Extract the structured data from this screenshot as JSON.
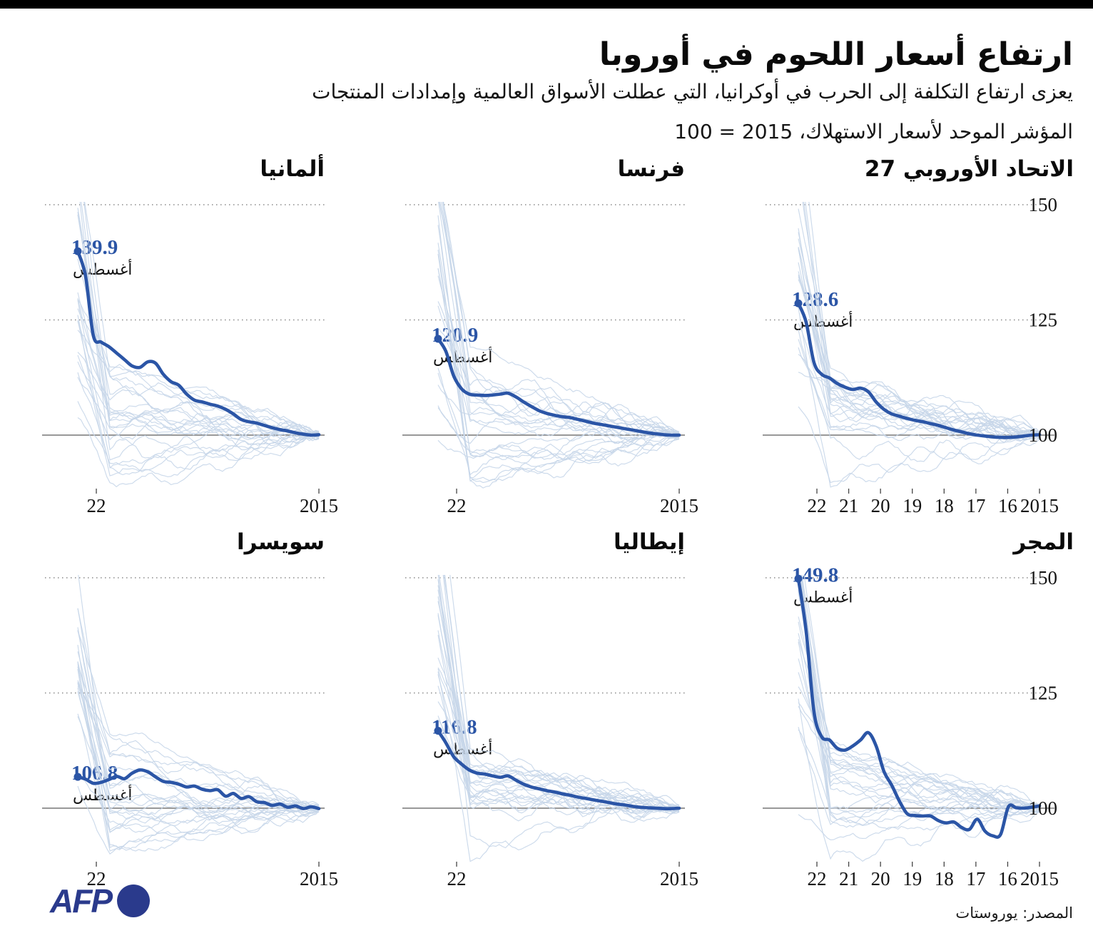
{
  "header": {
    "title": "ارتفاع أسعار اللحوم في أوروبا",
    "subtitle": "يعزى ارتفاع التكلفة إلى الحرب في أوكرانيا، التي عطلت الأسواق العالمية وإمدادات المنتجات",
    "index_note": "المؤشر الموحد لأسعار الاستهلاك، 2015 = 100"
  },
  "footer": {
    "logo_text": "AFP",
    "source": "المصدر: يوروستات"
  },
  "colors": {
    "accent_blue": "#2b55a6",
    "strand_blue": "#c6d6e9",
    "grid_gray": "#8a8a8a",
    "axis_gray": "#777777",
    "logo_blue": "#2a3a8c",
    "text_black": "#141414",
    "topbar_black": "#000000"
  },
  "axis": {
    "y_ticks": [
      "150",
      "125",
      "100"
    ],
    "y_values": [
      150,
      125,
      100
    ],
    "x_ticks_full": [
      "22",
      "21",
      "20",
      "19",
      "18",
      "17",
      "16",
      "2015"
    ],
    "x_ticks_simple": [
      "22",
      "2015"
    ],
    "x_direction": "reversed (2022 on the left, 2015 on the right)"
  },
  "chart_data": [
    {
      "id": "eu27",
      "type": "line",
      "title": "الاتحاد الأوروبي 27",
      "peak_label": "128.6",
      "peak_value": 128.6,
      "month_label": "أغسطس",
      "axis": "full",
      "y_axis_labels": true,
      "x_start": 2022.583,
      "x_end": 2015,
      "ylim": [
        89,
        152
      ],
      "values": [
        128.6,
        124.5,
        115.8,
        113.2,
        112.4,
        111.2,
        110.4,
        109.9,
        110.2,
        109.4,
        107.2,
        105.6,
        104.6,
        104.1,
        103.6,
        103.2,
        102.9,
        102.5,
        102.1,
        101.6,
        101.1,
        100.7,
        100.3,
        100.0,
        99.8,
        99.6,
        99.5,
        99.5,
        99.6,
        99.8,
        100.0,
        100.1
      ],
      "background_series": "unlabeled light-blue traces of other consumer-price categories (decorative bundle converging to 100 in 2015)"
    },
    {
      "id": "france",
      "type": "line",
      "title": "فرنسا",
      "peak_label": "120.9",
      "peak_value": 120.9,
      "month_label": "أغسطس",
      "axis": "simple",
      "y_axis_labels": false,
      "x_start": 2022.583,
      "x_end": 2015,
      "ylim": [
        89,
        152
      ],
      "values": [
        120.9,
        118.2,
        112.9,
        110.1,
        108.9,
        108.7,
        108.6,
        108.7,
        108.9,
        109.1,
        108.3,
        107.2,
        106.2,
        105.3,
        104.7,
        104.3,
        104.0,
        103.8,
        103.4,
        103.0,
        102.6,
        102.3,
        102.0,
        101.7,
        101.4,
        101.1,
        100.8,
        100.5,
        100.3,
        100.1,
        100.0,
        100.0
      ],
      "background_series": "unlabeled light-blue traces of other consumer-price categories"
    },
    {
      "id": "germany",
      "type": "line",
      "title": "ألمانيا",
      "peak_label": "139.9",
      "peak_value": 139.9,
      "month_label": "أغسطس",
      "axis": "simple",
      "y_axis_labels": false,
      "x_start": 2022.583,
      "x_end": 2015,
      "ylim": [
        89,
        152
      ],
      "values": [
        139.9,
        134.5,
        121.6,
        120.2,
        119.2,
        117.8,
        116.4,
        115.0,
        114.7,
        115.9,
        115.6,
        113.2,
        111.6,
        110.8,
        108.9,
        107.6,
        107.2,
        106.7,
        106.3,
        105.6,
        104.6,
        103.4,
        102.9,
        102.6,
        102.1,
        101.6,
        101.2,
        100.9,
        100.5,
        100.2,
        100.0,
        100.1
      ],
      "background_series": "unlabeled light-blue traces of other consumer-price categories"
    },
    {
      "id": "hungary",
      "type": "line",
      "title": "المجر",
      "peak_label": "149.8",
      "peak_value": 149.8,
      "month_label": "أغسطس",
      "axis": "full",
      "y_axis_labels": true,
      "x_start": 2022.583,
      "x_end": 2015,
      "ylim": [
        89,
        152
      ],
      "values": [
        149.8,
        138.5,
        121.0,
        115.5,
        114.8,
        113.0,
        112.6,
        113.5,
        114.8,
        116.4,
        113.5,
        108.0,
        105.0,
        101.5,
        98.8,
        98.4,
        98.3,
        98.3,
        97.3,
        96.8,
        97.0,
        95.8,
        95.4,
        97.6,
        95.0,
        94.0,
        94.3,
        100.3,
        100.1,
        100.0,
        100.2,
        100.5
      ],
      "background_series": "unlabeled light-blue traces of other consumer-price categories"
    },
    {
      "id": "italy",
      "type": "line",
      "title": "إيطاليا",
      "peak_label": "116.8",
      "peak_value": 116.8,
      "month_label": "أغسطس",
      "axis": "simple",
      "y_axis_labels": false,
      "x_start": 2022.583,
      "x_end": 2015,
      "ylim": [
        89,
        152
      ],
      "values": [
        116.8,
        114.2,
        111.2,
        109.6,
        108.3,
        107.6,
        107.4,
        107.0,
        106.7,
        107.0,
        106.1,
        105.2,
        104.6,
        104.2,
        103.8,
        103.5,
        103.1,
        102.8,
        102.4,
        102.1,
        101.8,
        101.5,
        101.2,
        100.9,
        100.7,
        100.4,
        100.2,
        100.1,
        100.0,
        99.9,
        99.9,
        100.0
      ],
      "background_series": "unlabeled light-blue traces of other consumer-price categories"
    },
    {
      "id": "switzerland",
      "type": "line",
      "title": "سويسرا",
      "peak_label": "106.8",
      "peak_value": 106.8,
      "month_label": "أغسطس",
      "axis": "simple",
      "y_axis_labels": false,
      "x_start": 2022.583,
      "x_end": 2015,
      "ylim": [
        89,
        152
      ],
      "values": [
        106.8,
        106.3,
        105.4,
        105.6,
        106.2,
        106.9,
        106.4,
        107.6,
        108.3,
        107.9,
        106.8,
        105.8,
        105.6,
        105.2,
        104.6,
        104.8,
        104.1,
        103.8,
        104.0,
        102.6,
        103.2,
        102.1,
        102.5,
        101.4,
        101.2,
        100.6,
        100.9,
        100.2,
        100.5,
        99.9,
        100.3,
        99.9
      ],
      "background_series": "unlabeled light-blue traces of other consumer-price categories"
    }
  ]
}
